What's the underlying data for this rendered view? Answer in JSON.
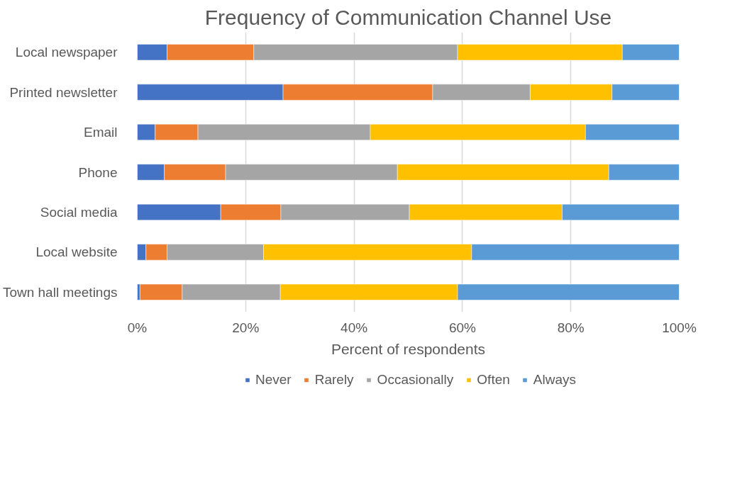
{
  "chart_data": {
    "type": "bar",
    "orientation": "horizontal",
    "stacked": true,
    "title": "Frequency of Communication Channel Use",
    "xlabel": "Percent of respondents",
    "categories": [
      "Local newspaper",
      "Printed newsletter",
      "Email",
      "Phone",
      "Social media",
      "Local website",
      "Town hall meetings"
    ],
    "series": [
      {
        "name": "Never",
        "color": "#4472c4",
        "values": [
          5.5,
          26.9,
          3.3,
          5.0,
          15.4,
          1.6,
          0.5
        ]
      },
      {
        "name": "Rarely",
        "color": "#ed7d31",
        "values": [
          16.0,
          27.6,
          7.9,
          11.3,
          11.1,
          3.9,
          7.8
        ]
      },
      {
        "name": "Occasionally",
        "color": "#a5a5a5",
        "values": [
          37.6,
          18.0,
          31.8,
          31.7,
          23.7,
          17.8,
          18.1
        ]
      },
      {
        "name": "Often",
        "color": "#ffc000",
        "values": [
          30.4,
          15.1,
          39.7,
          39.0,
          28.2,
          38.4,
          32.7
        ]
      },
      {
        "name": "Always",
        "color": "#5b9bd5",
        "values": [
          10.5,
          12.4,
          17.3,
          13.0,
          21.6,
          38.3,
          40.9
        ]
      }
    ],
    "xlim": [
      0,
      100
    ],
    "xticks": [
      {
        "value": 0,
        "label": "0%"
      },
      {
        "value": 20,
        "label": "20%"
      },
      {
        "value": 40,
        "label": "40%"
      },
      {
        "value": 60,
        "label": "60%"
      },
      {
        "value": 80,
        "label": "80%"
      },
      {
        "value": 100,
        "label": "100%"
      }
    ],
    "grid": "x",
    "legend": "bottom"
  }
}
